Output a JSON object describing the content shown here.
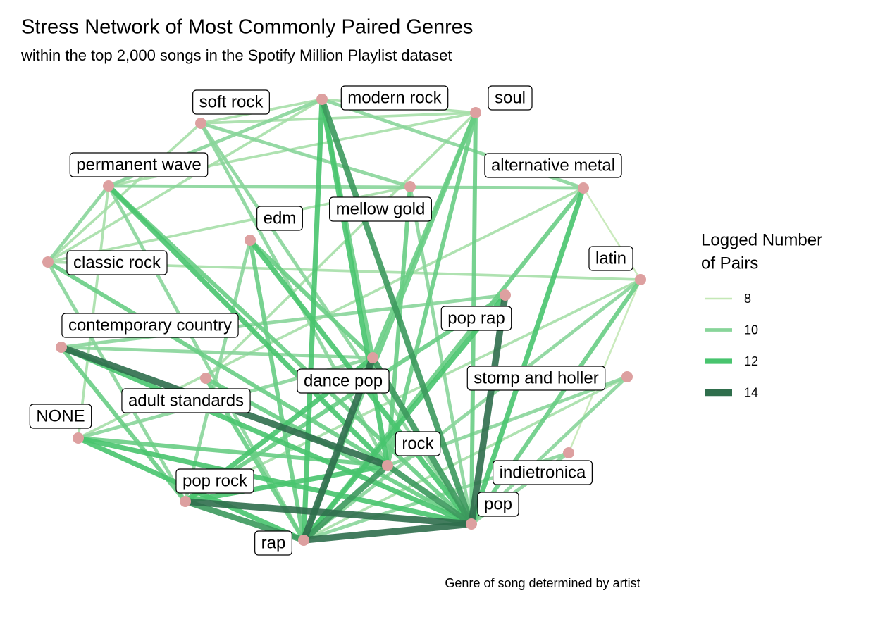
{
  "title": "Stress Network of Most Commonly Paired Genres",
  "subtitle": "within the top 2,000 songs in the Spotify Million Playlist dataset",
  "caption": "Genre of song determined by artist",
  "legend": {
    "title": [
      "Logged Number",
      "of Pairs"
    ],
    "items": [
      {
        "value": 8,
        "color": "#c4e8b6"
      },
      {
        "value": 10,
        "color": "#88d59a"
      },
      {
        "value": 12,
        "color": "#48c46e"
      },
      {
        "value": 14,
        "color": "#2f6e4c"
      }
    ]
  },
  "nodes": [
    {
      "label": "soft rock"
    },
    {
      "label": "modern rock"
    },
    {
      "label": "soul"
    },
    {
      "label": "permanent wave"
    },
    {
      "label": "alternative metal"
    },
    {
      "label": "mellow gold"
    },
    {
      "label": "edm"
    },
    {
      "label": "classic rock"
    },
    {
      "label": "latin"
    },
    {
      "label": "pop rap"
    },
    {
      "label": "contemporary country"
    },
    {
      "label": "dance pop"
    },
    {
      "label": "stomp and holler"
    },
    {
      "label": "adult standards"
    },
    {
      "label": "NONE"
    },
    {
      "label": "rock"
    },
    {
      "label": "indietronica"
    },
    {
      "label": "pop rock"
    },
    {
      "label": "pop"
    },
    {
      "label": "rap"
    }
  ],
  "edges": [
    {
      "from": "soft rock",
      "to": "modern rock",
      "value": 9
    },
    {
      "from": "soft rock",
      "to": "soul",
      "value": 9
    },
    {
      "from": "soft rock",
      "to": "mellow gold",
      "value": 10
    },
    {
      "from": "soft rock",
      "to": "rock",
      "value": 10
    },
    {
      "from": "soft rock",
      "to": "pop",
      "value": 10
    },
    {
      "from": "soft rock",
      "to": "classic rock",
      "value": 9
    },
    {
      "from": "modern rock",
      "to": "soul",
      "value": 9
    },
    {
      "from": "modern rock",
      "to": "rock",
      "value": 12
    },
    {
      "from": "modern rock",
      "to": "rap",
      "value": 12
    },
    {
      "from": "modern rock",
      "to": "pop",
      "value": 13
    },
    {
      "from": "modern rock",
      "to": "permanent wave",
      "value": 10
    },
    {
      "from": "modern rock",
      "to": "alternative metal",
      "value": 10
    },
    {
      "from": "modern rock",
      "to": "dance pop",
      "value": 11
    },
    {
      "from": "modern rock",
      "to": "classic rock",
      "value": 9
    },
    {
      "from": "soul",
      "to": "dance pop",
      "value": 11
    },
    {
      "from": "soul",
      "to": "pop",
      "value": 11
    },
    {
      "from": "soul",
      "to": "rap",
      "value": 11
    },
    {
      "from": "soul",
      "to": "rock",
      "value": 11
    },
    {
      "from": "soul",
      "to": "permanent wave",
      "value": 9
    },
    {
      "from": "soul",
      "to": "adult standards",
      "value": 9
    },
    {
      "from": "permanent wave",
      "to": "rock",
      "value": 12
    },
    {
      "from": "permanent wave",
      "to": "pop",
      "value": 11
    },
    {
      "from": "permanent wave",
      "to": "classic rock",
      "value": 10
    },
    {
      "from": "permanent wave",
      "to": "alternative metal",
      "value": 10
    },
    {
      "from": "permanent wave",
      "to": "rap",
      "value": 10
    },
    {
      "from": "permanent wave",
      "to": "NONE",
      "value": 9
    },
    {
      "from": "alternative metal",
      "to": "pop",
      "value": 12
    },
    {
      "from": "alternative metal",
      "to": "rap",
      "value": 11
    },
    {
      "from": "alternative metal",
      "to": "latin",
      "value": 8
    },
    {
      "from": "alternative metal",
      "to": "NONE",
      "value": 9
    },
    {
      "from": "mellow gold",
      "to": "rock",
      "value": 11
    },
    {
      "from": "mellow gold",
      "to": "classic rock",
      "value": 9
    },
    {
      "from": "mellow gold",
      "to": "pop",
      "value": 10
    },
    {
      "from": "edm",
      "to": "pop",
      "value": 12
    },
    {
      "from": "edm",
      "to": "dance pop",
      "value": 11
    },
    {
      "from": "edm",
      "to": "rap",
      "value": 11
    },
    {
      "from": "edm",
      "to": "pop rock",
      "value": 10
    },
    {
      "from": "classic rock",
      "to": "rock",
      "value": 11
    },
    {
      "from": "classic rock",
      "to": "pop rock",
      "value": 10
    },
    {
      "from": "classic rock",
      "to": "latin",
      "value": 9
    },
    {
      "from": "latin",
      "to": "pop",
      "value": 11
    },
    {
      "from": "latin",
      "to": "rap",
      "value": 10
    },
    {
      "from": "latin",
      "to": "pop rock",
      "value": 9
    },
    {
      "from": "latin",
      "to": "indietronica",
      "value": 8
    },
    {
      "from": "pop rap",
      "to": "pop",
      "value": 14
    },
    {
      "from": "pop rap",
      "to": "rap",
      "value": 12
    },
    {
      "from": "pop rap",
      "to": "contemporary country",
      "value": 10
    },
    {
      "from": "pop rap",
      "to": "pop rock",
      "value": 11
    },
    {
      "from": "contemporary country",
      "to": "rock",
      "value": 14
    },
    {
      "from": "contemporary country",
      "to": "pop",
      "value": 12
    },
    {
      "from": "contemporary country",
      "to": "pop rock",
      "value": 11
    },
    {
      "from": "contemporary country",
      "to": "dance pop",
      "value": 10
    },
    {
      "from": "dance pop",
      "to": "rap",
      "value": 14
    },
    {
      "from": "dance pop",
      "to": "pop",
      "value": 13
    },
    {
      "from": "dance pop",
      "to": "pop rock",
      "value": 12
    },
    {
      "from": "dance pop",
      "to": "NONE",
      "value": 10
    },
    {
      "from": "stomp and holler",
      "to": "pop",
      "value": 10
    },
    {
      "from": "stomp and holler",
      "to": "rock",
      "value": 10
    },
    {
      "from": "stomp and holler",
      "to": "rap",
      "value": 9
    },
    {
      "from": "adult standards",
      "to": "pop",
      "value": 11
    },
    {
      "from": "adult standards",
      "to": "rap",
      "value": 11
    },
    {
      "from": "NONE",
      "to": "pop",
      "value": 12
    },
    {
      "from": "NONE",
      "to": "rap",
      "value": 12
    },
    {
      "from": "NONE",
      "to": "rock",
      "value": 11
    },
    {
      "from": "rock",
      "to": "rap",
      "value": 13
    },
    {
      "from": "rock",
      "to": "pop",
      "value": 13
    },
    {
      "from": "rock",
      "to": "pop rock",
      "value": 12
    },
    {
      "from": "indietronica",
      "to": "pop",
      "value": 10
    },
    {
      "from": "indietronica",
      "to": "rap",
      "value": 10
    },
    {
      "from": "pop rock",
      "to": "pop",
      "value": 14
    },
    {
      "from": "pop rock",
      "to": "rap",
      "value": 13
    },
    {
      "from": "pop",
      "to": "rap",
      "value": 14
    }
  ]
}
